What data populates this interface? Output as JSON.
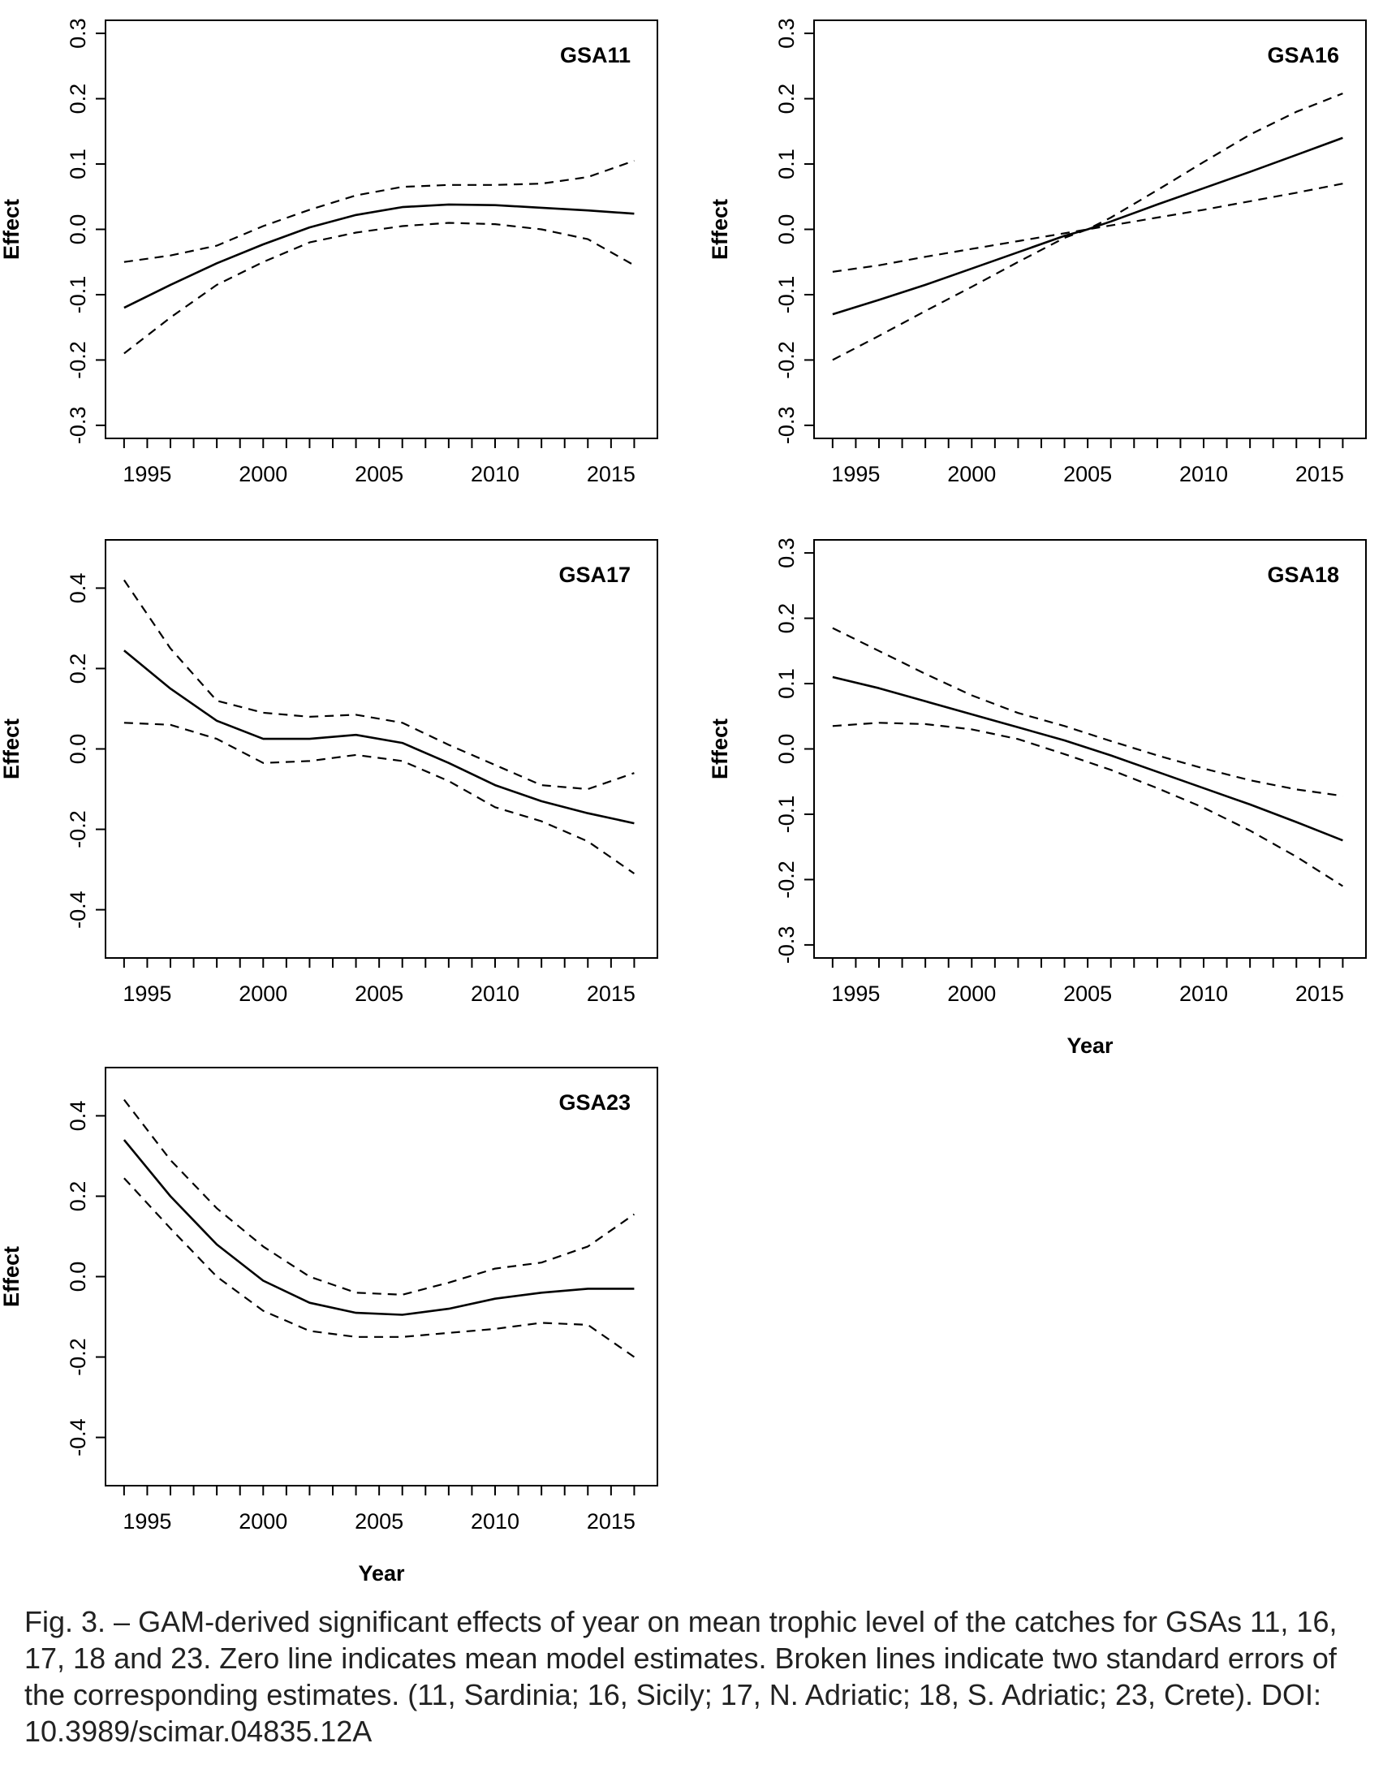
{
  "chart_data": [
    {
      "type": "line",
      "title": "GSA11",
      "ylabel": "Effect",
      "xlabel": "",
      "xlim": [
        1993.2,
        2017.0
      ],
      "ylim": [
        -0.32,
        0.32
      ],
      "xticks": [
        1995,
        2000,
        2005,
        2010,
        2015
      ],
      "yticks": [
        -0.3,
        -0.2,
        -0.1,
        0.0,
        0.1,
        0.2,
        0.3
      ],
      "ytick_labels": [
        "-0.3",
        "-0.2",
        "-0.1",
        "0.0",
        "0.1",
        "0.2",
        "0.3"
      ],
      "x": [
        1994,
        1996,
        1998,
        2000,
        2002,
        2004,
        2006,
        2008,
        2010,
        2012,
        2014,
        2016
      ],
      "series": [
        {
          "style": "solid",
          "values": [
            -0.12,
            -0.085,
            -0.052,
            -0.023,
            0.003,
            0.022,
            0.034,
            0.038,
            0.037,
            0.033,
            0.029,
            0.024
          ]
        },
        {
          "style": "dashed",
          "values": [
            -0.05,
            -0.04,
            -0.025,
            0.005,
            0.03,
            0.052,
            0.065,
            0.068,
            0.068,
            0.07,
            0.08,
            0.105
          ]
        },
        {
          "style": "dashed",
          "values": [
            -0.19,
            -0.135,
            -0.085,
            -0.05,
            -0.02,
            -0.005,
            0.005,
            0.01,
            0.008,
            0.0,
            -0.015,
            -0.055
          ]
        }
      ]
    },
    {
      "type": "line",
      "title": "GSA16",
      "ylabel": "Effect",
      "xlabel": "",
      "xlim": [
        1993.2,
        2017.0
      ],
      "ylim": [
        -0.32,
        0.32
      ],
      "xticks": [
        1995,
        2000,
        2005,
        2010,
        2015
      ],
      "yticks": [
        -0.3,
        -0.2,
        -0.1,
        0.0,
        0.1,
        0.2,
        0.3
      ],
      "ytick_labels": [
        "-0.3",
        "-0.2",
        "-0.1",
        "0.0",
        "0.1",
        "0.2",
        "0.3"
      ],
      "x": [
        1994,
        1996,
        1998,
        2000,
        2002,
        2004,
        2005,
        2006,
        2008,
        2010,
        2012,
        2014,
        2016
      ],
      "series": [
        {
          "style": "solid",
          "values": [
            -0.13,
            -0.108,
            -0.085,
            -0.06,
            -0.035,
            -0.01,
            0.0,
            0.012,
            0.038,
            0.063,
            0.088,
            0.114,
            0.14
          ]
        },
        {
          "style": "dashed",
          "values": [
            -0.065,
            -0.055,
            -0.042,
            -0.03,
            -0.018,
            -0.006,
            0.0,
            0.006,
            0.018,
            0.03,
            0.043,
            0.056,
            0.07
          ]
        },
        {
          "style": "dashed",
          "values": [
            -0.2,
            -0.163,
            -0.125,
            -0.088,
            -0.05,
            -0.013,
            0.0,
            0.018,
            0.06,
            0.103,
            0.145,
            0.18,
            0.208
          ]
        }
      ]
    },
    {
      "type": "line",
      "title": "GSA17",
      "ylabel": "Effect",
      "xlabel": "",
      "xlim": [
        1993.2,
        2017.0
      ],
      "ylim": [
        -0.52,
        0.52
      ],
      "xticks": [
        1995,
        2000,
        2005,
        2010,
        2015
      ],
      "yticks": [
        -0.4,
        -0.2,
        0.0,
        0.2,
        0.4
      ],
      "ytick_labels": [
        "-0.4",
        "-0.2",
        "0.0",
        "0.2",
        "0.4"
      ],
      "x": [
        1994,
        1996,
        1998,
        2000,
        2002,
        2004,
        2006,
        2008,
        2010,
        2012,
        2014,
        2016
      ],
      "series": [
        {
          "style": "solid",
          "values": [
            0.245,
            0.15,
            0.07,
            0.025,
            0.025,
            0.035,
            0.015,
            -0.035,
            -0.09,
            -0.13,
            -0.16,
            -0.185
          ]
        },
        {
          "style": "dashed",
          "values": [
            0.42,
            0.25,
            0.12,
            0.09,
            0.08,
            0.085,
            0.065,
            0.01,
            -0.04,
            -0.09,
            -0.1,
            -0.06
          ]
        },
        {
          "style": "dashed",
          "values": [
            0.065,
            0.06,
            0.025,
            -0.035,
            -0.03,
            -0.015,
            -0.03,
            -0.08,
            -0.145,
            -0.18,
            -0.23,
            -0.31
          ]
        }
      ]
    },
    {
      "type": "line",
      "title": "GSA18",
      "ylabel": "Effect",
      "xlabel": "Year",
      "xlim": [
        1993.2,
        2017.0
      ],
      "ylim": [
        -0.32,
        0.32
      ],
      "xticks": [
        1995,
        2000,
        2005,
        2010,
        2015
      ],
      "yticks": [
        -0.3,
        -0.2,
        -0.1,
        0.0,
        0.1,
        0.2,
        0.3
      ],
      "ytick_labels": [
        "-0.3",
        "-0.2",
        "-0.1",
        "0.0",
        "0.1",
        "0.2",
        "0.3"
      ],
      "x": [
        1994,
        1996,
        1998,
        2000,
        2002,
        2004,
        2006,
        2008,
        2010,
        2012,
        2014,
        2016
      ],
      "series": [
        {
          "style": "solid",
          "values": [
            0.11,
            0.093,
            0.073,
            0.053,
            0.033,
            0.013,
            -0.01,
            -0.035,
            -0.06,
            -0.085,
            -0.112,
            -0.14
          ]
        },
        {
          "style": "dashed",
          "values": [
            0.185,
            0.15,
            0.115,
            0.082,
            0.055,
            0.035,
            0.012,
            -0.01,
            -0.03,
            -0.048,
            -0.062,
            -0.072
          ]
        },
        {
          "style": "dashed",
          "values": [
            0.035,
            0.04,
            0.038,
            0.03,
            0.015,
            -0.008,
            -0.032,
            -0.06,
            -0.09,
            -0.125,
            -0.165,
            -0.21
          ]
        }
      ]
    },
    {
      "type": "line",
      "title": "GSA23",
      "ylabel": "Effect",
      "xlabel": "Year",
      "xlim": [
        1993.2,
        2017.0
      ],
      "ylim": [
        -0.52,
        0.52
      ],
      "xticks": [
        1995,
        2000,
        2005,
        2010,
        2015
      ],
      "yticks": [
        -0.4,
        -0.2,
        0.0,
        0.2,
        0.4
      ],
      "ytick_labels": [
        "-0.4",
        "-0.2",
        "0.0",
        "0.2",
        "0.4"
      ],
      "x": [
        1994,
        1996,
        1998,
        2000,
        2002,
        2004,
        2006,
        2008,
        2010,
        2012,
        2014,
        2016
      ],
      "series": [
        {
          "style": "solid",
          "values": [
            0.34,
            0.2,
            0.08,
            -0.01,
            -0.065,
            -0.09,
            -0.095,
            -0.08,
            -0.055,
            -0.04,
            -0.03,
            -0.03
          ]
        },
        {
          "style": "dashed",
          "values": [
            0.44,
            0.29,
            0.17,
            0.075,
            0.0,
            -0.04,
            -0.045,
            -0.015,
            0.02,
            0.035,
            0.075,
            0.155
          ]
        },
        {
          "style": "dashed",
          "values": [
            0.245,
            0.12,
            0.0,
            -0.085,
            -0.135,
            -0.15,
            -0.15,
            -0.14,
            -0.13,
            -0.115,
            -0.12,
            -0.2
          ]
        }
      ]
    }
  ],
  "caption": "Fig. 3. – GAM-derived significant effects of year on mean trophic level of the catches for GSAs 11, 16, 17, 18 and 23. Zero line indicates mean model estimates. Broken lines indicate two standard errors of the corresponding estimates. (11, Sardinia; 16, Sicily; 17, N. Adriatic; 18, S. Adriatic; 23, Crete). DOI: 10.3989/scimar.04835.12A"
}
